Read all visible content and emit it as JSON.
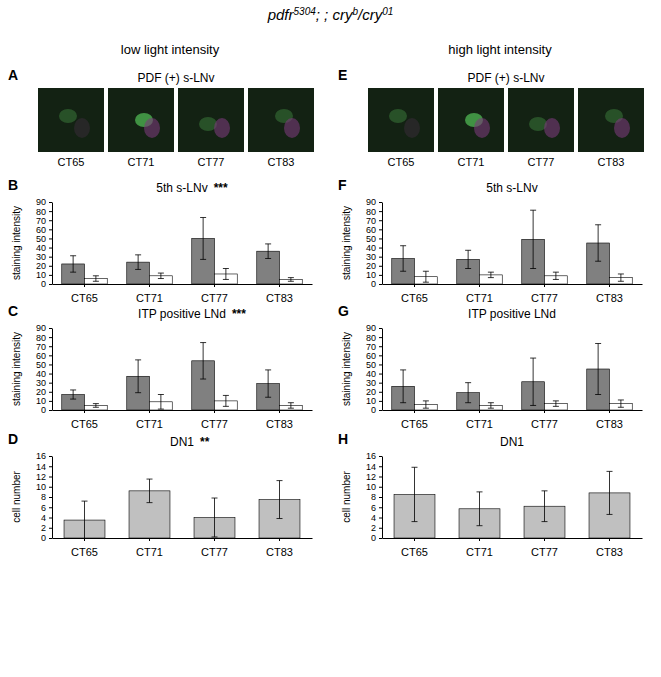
{
  "figure_title": [
    {
      "text": "pdfr",
      "sup": false
    },
    {
      "text": "5304",
      "sup": true
    },
    {
      "text": "; ; cry",
      "sup": false
    },
    {
      "text": "b",
      "sup": true
    },
    {
      "text": "/cry",
      "sup": false
    },
    {
      "text": "01",
      "sup": true
    }
  ],
  "column_headings": [
    "low light intensity",
    "high light intensity"
  ],
  "image_panels": [
    {
      "panel": "A",
      "title": "PDF (+) s-LNv",
      "labels": [
        "CT65",
        "CT71",
        "CT77",
        "CT83"
      ]
    },
    {
      "panel": "E",
      "title": "PDF (+) s-LNv",
      "labels": [
        "CT65",
        "CT71",
        "CT77",
        "CT83"
      ]
    }
  ],
  "chart_data": [
    {
      "type": "bar",
      "panel": "B",
      "title": "5th s-LNv",
      "annotation": "***",
      "y_label": "staining intensity",
      "categories": [
        "CT65",
        "CT71",
        "CT77",
        "CT83"
      ],
      "series": [
        {
          "color": "#808080",
          "values": [
            22,
            24,
            50,
            36
          ],
          "errors": [
            9,
            8,
            23,
            8
          ]
        },
        {
          "color": "#ffffff",
          "values": [
            6,
            9,
            11,
            5
          ],
          "errors": [
            3,
            3,
            6,
            2
          ]
        }
      ],
      "ylim": [
        0,
        90
      ],
      "yticks": [
        0,
        10,
        20,
        30,
        40,
        50,
        60,
        70,
        80,
        90
      ]
    },
    {
      "type": "bar",
      "panel": "C",
      "title": "ITP positive LNd",
      "annotation": "***",
      "y_label": "staining intensity",
      "categories": [
        "CT65",
        "CT71",
        "CT77",
        "CT83"
      ],
      "series": [
        {
          "color": "#808080",
          "values": [
            17,
            37,
            54,
            29
          ],
          "errors": [
            5,
            18,
            20,
            15
          ]
        },
        {
          "color": "#ffffff",
          "values": [
            5,
            9,
            10,
            5
          ],
          "errors": [
            2,
            8,
            6,
            3
          ]
        }
      ],
      "ylim": [
        0,
        90
      ],
      "yticks": [
        0,
        10,
        20,
        30,
        40,
        50,
        60,
        70,
        80,
        90
      ]
    },
    {
      "type": "bar",
      "panel": "D",
      "title": "DN1",
      "annotation": "**",
      "y_label": "cell number",
      "categories": [
        "CT65",
        "CT71",
        "CT77",
        "CT83"
      ],
      "series": [
        {
          "color": "#c0c0c0",
          "values": [
            3.5,
            9.2,
            4,
            7.5
          ],
          "errors": [
            3.7,
            2.3,
            3.8,
            3.7
          ]
        }
      ],
      "ylim": [
        0,
        16
      ],
      "yticks": [
        0,
        2,
        4,
        6,
        8,
        10,
        12,
        14,
        16
      ]
    },
    {
      "type": "bar",
      "panel": "F",
      "title": "5th s-LNv",
      "y_label": "staining intensity",
      "categories": [
        "CT65",
        "CT71",
        "CT77",
        "CT83"
      ],
      "series": [
        {
          "color": "#808080",
          "values": [
            28,
            27,
            49,
            45
          ],
          "errors": [
            14,
            10,
            32,
            20
          ]
        },
        {
          "color": "#ffffff",
          "values": [
            8,
            10,
            9,
            7
          ],
          "errors": [
            6,
            3,
            4,
            4
          ]
        }
      ],
      "ylim": [
        0,
        90
      ],
      "yticks": [
        0,
        10,
        20,
        30,
        40,
        50,
        60,
        70,
        80,
        90
      ]
    },
    {
      "type": "bar",
      "panel": "G",
      "title": "ITP positive LNd",
      "y_label": "staining intensity",
      "categories": [
        "CT65",
        "CT71",
        "CT77",
        "CT83"
      ],
      "series": [
        {
          "color": "#808080",
          "values": [
            26,
            19,
            31,
            45
          ],
          "errors": [
            18,
            11,
            26,
            28
          ]
        },
        {
          "color": "#ffffff",
          "values": [
            6,
            5,
            7,
            7
          ],
          "errors": [
            4,
            3,
            3,
            4
          ]
        }
      ],
      "ylim": [
        0,
        90
      ],
      "yticks": [
        0,
        10,
        20,
        30,
        40,
        50,
        60,
        70,
        80,
        90
      ]
    },
    {
      "type": "bar",
      "panel": "H",
      "title": "DN1",
      "y_label": "cell number",
      "categories": [
        "CT65",
        "CT71",
        "CT77",
        "CT83"
      ],
      "series": [
        {
          "color": "#c0c0c0",
          "values": [
            8.5,
            5.7,
            6.2,
            8.8
          ],
          "errors": [
            5.3,
            3.3,
            3,
            4.2
          ]
        }
      ],
      "ylim": [
        0,
        16
      ],
      "yticks": [
        0,
        2,
        4,
        6,
        8,
        10,
        12,
        14,
        16
      ]
    }
  ]
}
